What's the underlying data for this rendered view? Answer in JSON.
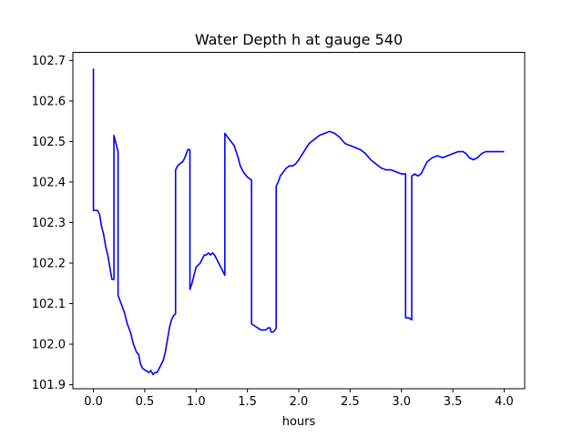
{
  "chart_data": {
    "type": "line",
    "title": "Water Depth h at gauge 540",
    "xlabel": "hours",
    "ylabel": "",
    "xlim": [
      -0.2,
      4.2
    ],
    "ylim": [
      101.89,
      102.72
    ],
    "x_ticks": [
      0.0,
      0.5,
      1.0,
      1.5,
      2.0,
      2.5,
      3.0,
      3.5,
      4.0
    ],
    "x_tick_labels": [
      "0.0",
      "0.5",
      "1.0",
      "1.5",
      "2.0",
      "2.5",
      "3.0",
      "3.5",
      "4.0"
    ],
    "y_ticks": [
      101.9,
      102.0,
      102.1,
      102.2,
      102.3,
      102.4,
      102.5,
      102.6,
      102.7
    ],
    "y_tick_labels": [
      "101.9",
      "102.0",
      "102.1",
      "102.2",
      "102.3",
      "102.4",
      "102.5",
      "102.6",
      "102.7"
    ],
    "grid": false,
    "series": [
      {
        "color": "#0000ff",
        "points": [
          [
            0.0,
            102.68
          ],
          [
            0.0,
            102.33
          ],
          [
            0.02,
            102.33
          ],
          [
            0.04,
            102.33
          ],
          [
            0.06,
            102.32
          ],
          [
            0.08,
            102.29
          ],
          [
            0.1,
            102.27
          ],
          [
            0.12,
            102.24
          ],
          [
            0.14,
            102.22
          ],
          [
            0.16,
            102.19
          ],
          [
            0.18,
            102.16
          ],
          [
            0.2,
            102.16
          ],
          [
            0.2,
            102.515
          ],
          [
            0.24,
            102.475
          ],
          [
            0.24,
            102.12
          ],
          [
            0.27,
            102.1
          ],
          [
            0.3,
            102.08
          ],
          [
            0.33,
            102.05
          ],
          [
            0.36,
            102.03
          ],
          [
            0.39,
            102.0
          ],
          [
            0.42,
            101.98
          ],
          [
            0.44,
            101.975
          ],
          [
            0.46,
            101.95
          ],
          [
            0.48,
            101.94
          ],
          [
            0.51,
            101.935
          ],
          [
            0.54,
            101.93
          ],
          [
            0.56,
            101.935
          ],
          [
            0.58,
            101.925
          ],
          [
            0.6,
            101.93
          ],
          [
            0.62,
            101.93
          ],
          [
            0.64,
            101.94
          ],
          [
            0.66,
            101.95
          ],
          [
            0.68,
            101.96
          ],
          [
            0.7,
            101.98
          ],
          [
            0.72,
            102.01
          ],
          [
            0.74,
            102.04
          ],
          [
            0.76,
            102.06
          ],
          [
            0.78,
            102.07
          ],
          [
            0.8,
            102.075
          ],
          [
            0.8,
            102.43
          ],
          [
            0.82,
            102.44
          ],
          [
            0.84,
            102.445
          ],
          [
            0.87,
            102.45
          ],
          [
            0.89,
            102.46
          ],
          [
            0.92,
            102.48
          ],
          [
            0.94,
            102.48
          ],
          [
            0.94,
            102.135
          ],
          [
            0.96,
            102.15
          ],
          [
            0.98,
            102.17
          ],
          [
            1.0,
            102.19
          ],
          [
            1.02,
            102.195
          ],
          [
            1.04,
            102.2
          ],
          [
            1.06,
            102.21
          ],
          [
            1.08,
            102.22
          ],
          [
            1.1,
            102.22
          ],
          [
            1.12,
            102.225
          ],
          [
            1.14,
            102.22
          ],
          [
            1.16,
            102.225
          ],
          [
            1.18,
            102.22
          ],
          [
            1.2,
            102.21
          ],
          [
            1.22,
            102.2
          ],
          [
            1.24,
            102.19
          ],
          [
            1.26,
            102.18
          ],
          [
            1.28,
            102.17
          ],
          [
            1.28,
            102.52
          ],
          [
            1.31,
            102.51
          ],
          [
            1.34,
            102.5
          ],
          [
            1.37,
            102.49
          ],
          [
            1.39,
            102.475
          ],
          [
            1.41,
            102.46
          ],
          [
            1.43,
            102.44
          ],
          [
            1.46,
            102.425
          ],
          [
            1.49,
            102.415
          ],
          [
            1.51,
            102.41
          ],
          [
            1.54,
            102.405
          ],
          [
            1.54,
            102.05
          ],
          [
            1.57,
            102.045
          ],
          [
            1.6,
            102.04
          ],
          [
            1.63,
            102.035
          ],
          [
            1.66,
            102.035
          ],
          [
            1.68,
            102.035
          ],
          [
            1.7,
            102.04
          ],
          [
            1.72,
            102.04
          ],
          [
            1.73,
            102.03
          ],
          [
            1.75,
            102.03
          ],
          [
            1.77,
            102.035
          ],
          [
            1.78,
            102.04
          ],
          [
            1.78,
            102.39
          ],
          [
            1.8,
            102.4
          ],
          [
            1.82,
            102.415
          ],
          [
            1.85,
            102.425
          ],
          [
            1.88,
            102.435
          ],
          [
            1.91,
            102.44
          ],
          [
            1.94,
            102.44
          ],
          [
            1.97,
            102.445
          ],
          [
            2.0,
            102.455
          ],
          [
            2.05,
            102.475
          ],
          [
            2.1,
            102.495
          ],
          [
            2.15,
            102.505
          ],
          [
            2.2,
            102.515
          ],
          [
            2.25,
            102.52
          ],
          [
            2.3,
            102.525
          ],
          [
            2.35,
            102.52
          ],
          [
            2.4,
            102.51
          ],
          [
            2.45,
            102.495
          ],
          [
            2.5,
            102.49
          ],
          [
            2.55,
            102.485
          ],
          [
            2.6,
            102.48
          ],
          [
            2.65,
            102.47
          ],
          [
            2.7,
            102.455
          ],
          [
            2.75,
            102.445
          ],
          [
            2.8,
            102.435
          ],
          [
            2.85,
            102.43
          ],
          [
            2.9,
            102.43
          ],
          [
            2.95,
            102.425
          ],
          [
            3.0,
            102.42
          ],
          [
            3.04,
            102.42
          ],
          [
            3.04,
            102.065
          ],
          [
            3.07,
            102.065
          ],
          [
            3.1,
            102.06
          ],
          [
            3.1,
            102.415
          ],
          [
            3.13,
            102.42
          ],
          [
            3.16,
            102.415
          ],
          [
            3.19,
            102.42
          ],
          [
            3.22,
            102.435
          ],
          [
            3.25,
            102.45
          ],
          [
            3.3,
            102.46
          ],
          [
            3.35,
            102.465
          ],
          [
            3.4,
            102.46
          ],
          [
            3.45,
            102.465
          ],
          [
            3.5,
            102.47
          ],
          [
            3.55,
            102.475
          ],
          [
            3.6,
            102.475
          ],
          [
            3.63,
            102.47
          ],
          [
            3.66,
            102.46
          ],
          [
            3.7,
            102.455
          ],
          [
            3.74,
            102.46
          ],
          [
            3.78,
            102.47
          ],
          [
            3.82,
            102.475
          ],
          [
            3.86,
            102.475
          ],
          [
            4.0,
            102.475
          ]
        ]
      }
    ]
  }
}
